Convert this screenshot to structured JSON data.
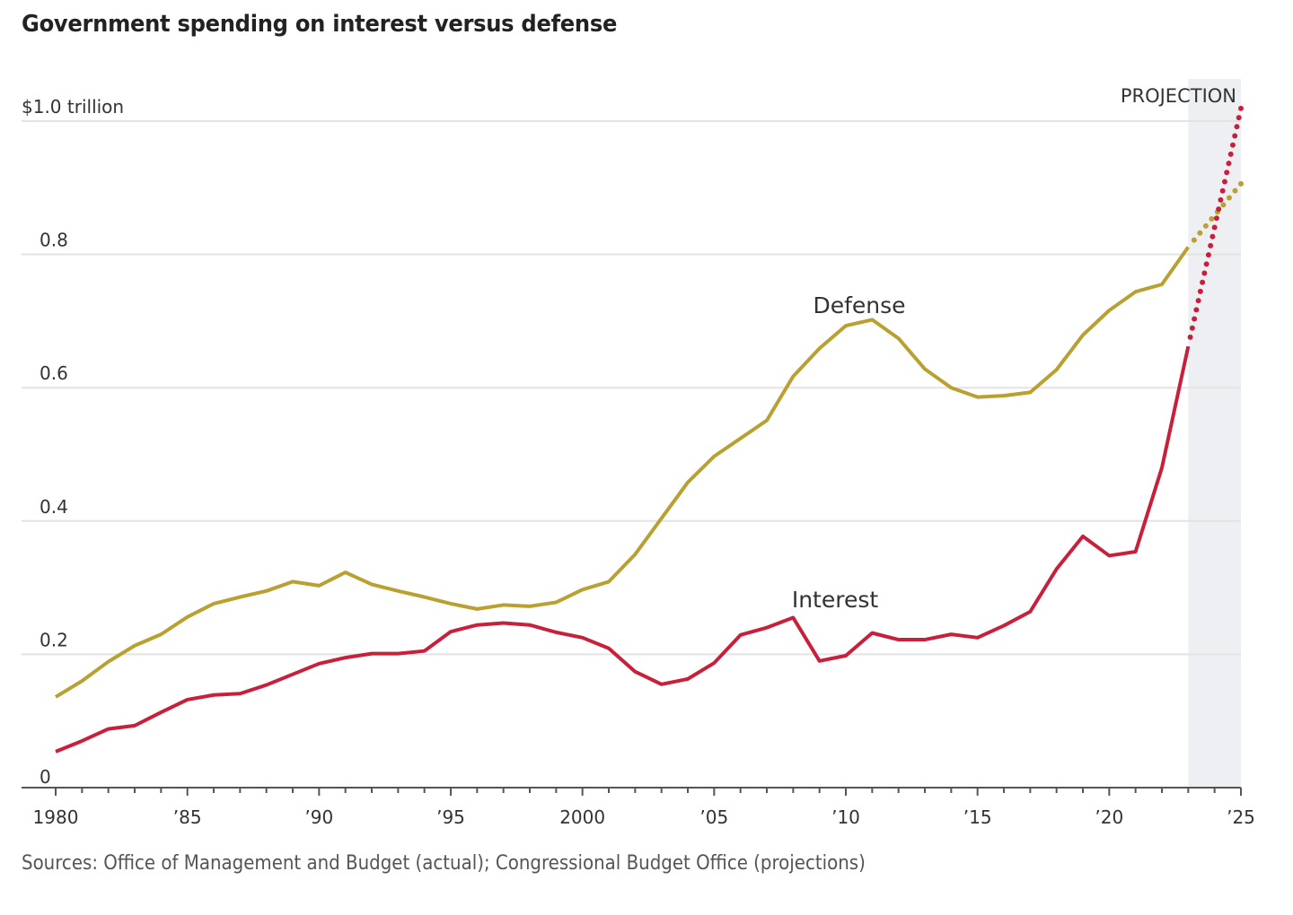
{
  "title": "Government spending on interest versus defense",
  "source": "Sources: Office of Management and Budget (actual); Congressional Budget Office (projections)",
  "colors": {
    "defense": "#B9A030",
    "interest": "#C8203A",
    "projection_shade": "#EEEFF2",
    "grid": "#E3E3E3",
    "axis": "#555555"
  },
  "chart_data": {
    "type": "line",
    "title": "Government spending on interest versus defense",
    "xlabel": "",
    "ylabel": "$ trillion",
    "ylim": [
      0,
      1.0
    ],
    "xlim": [
      1980,
      2025
    ],
    "grid": true,
    "y_ticks": [
      {
        "value": 0,
        "label": "0"
      },
      {
        "value": 0.2,
        "label": "0.2"
      },
      {
        "value": 0.4,
        "label": "0.4"
      },
      {
        "value": 0.6,
        "label": "0.6"
      },
      {
        "value": 0.8,
        "label": "0.8"
      },
      {
        "value": 1.0,
        "label": "$1.0 trillion"
      }
    ],
    "x_ticks": [
      {
        "value": 1980,
        "label": "1980"
      },
      {
        "value": 1985,
        "label": "’85"
      },
      {
        "value": 1990,
        "label": "’90"
      },
      {
        "value": 1995,
        "label": "’95"
      },
      {
        "value": 2000,
        "label": "2000"
      },
      {
        "value": 2005,
        "label": "’05"
      },
      {
        "value": 2010,
        "label": "’10"
      },
      {
        "value": 2015,
        "label": "’15"
      },
      {
        "value": 2020,
        "label": "’20"
      },
      {
        "value": 2025,
        "label": "’25"
      }
    ],
    "projection": {
      "label": "PROJECTION",
      "start": 2023,
      "end": 2025
    },
    "x": [
      1980,
      1981,
      1982,
      1983,
      1984,
      1985,
      1986,
      1987,
      1988,
      1989,
      1990,
      1991,
      1992,
      1993,
      1994,
      1995,
      1996,
      1997,
      1998,
      1999,
      2000,
      2001,
      2002,
      2003,
      2004,
      2005,
      2006,
      2007,
      2008,
      2009,
      2010,
      2011,
      2012,
      2013,
      2014,
      2015,
      2016,
      2017,
      2018,
      2019,
      2020,
      2021,
      2022,
      2023
    ],
    "series": [
      {
        "name": "Defense",
        "label": "Defense",
        "values": [
          0.136,
          0.16,
          0.189,
          0.213,
          0.23,
          0.256,
          0.276,
          0.286,
          0.295,
          0.309,
          0.303,
          0.323,
          0.305,
          0.295,
          0.286,
          0.276,
          0.268,
          0.274,
          0.272,
          0.278,
          0.297,
          0.309,
          0.35,
          0.404,
          0.458,
          0.497,
          0.524,
          0.551,
          0.617,
          0.659,
          0.693,
          0.702,
          0.674,
          0.628,
          0.6,
          0.586,
          0.588,
          0.593,
          0.627,
          0.679,
          0.716,
          0.744,
          0.755,
          0.811
        ],
        "projection": {
          "x": [
            2023,
            2025
          ],
          "values": [
            0.811,
            0.906
          ]
        }
      },
      {
        "name": "Interest",
        "label": "Interest",
        "values": [
          0.054,
          0.07,
          0.088,
          0.093,
          0.113,
          0.132,
          0.139,
          0.141,
          0.154,
          0.17,
          0.186,
          0.195,
          0.201,
          0.201,
          0.205,
          0.234,
          0.244,
          0.247,
          0.244,
          0.233,
          0.225,
          0.209,
          0.174,
          0.155,
          0.163,
          0.187,
          0.229,
          0.24,
          0.255,
          0.19,
          0.198,
          0.232,
          0.222,
          0.222,
          0.23,
          0.225,
          0.243,
          0.264,
          0.328,
          0.377,
          0.348,
          0.354,
          0.48,
          0.662
        ],
        "projection": {
          "x": [
            2023,
            2025
          ],
          "values": [
            0.662,
            1.019
          ]
        }
      }
    ],
    "legend": "inline-labels"
  }
}
